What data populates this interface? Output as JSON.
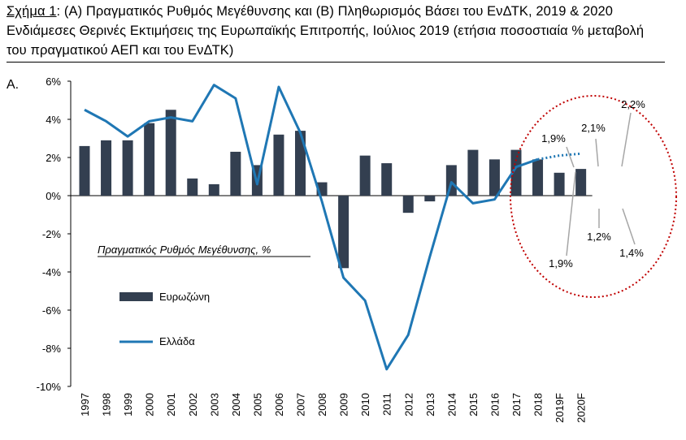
{
  "caption": {
    "label": "Σχήμα 1",
    "text": ": (Α) Πραγματικός Ρυθμός Μεγέθυνσης και (Β) Πληθωρισμός Βάσει του ΕνΔΤΚ, 2019 & 2020 Ενδιάμεσες Θερινές Εκτιμήσεις της Ευρωπαϊκής Επιτροπής, Ιούλιος 2019 (ετήσια ποσοστιαία % μεταβολή του πραγματικού ΑΕΠ και του ΕνΔΤΚ)"
  },
  "panel_label": "Α.",
  "chart_data": {
    "type": "bar",
    "categories": [
      "1997",
      "1998",
      "1999",
      "2000",
      "2001",
      "2002",
      "2003",
      "2004",
      "2005",
      "2006",
      "2007",
      "2008",
      "2009",
      "2010",
      "2011",
      "2012",
      "2013",
      "2014",
      "2015",
      "2016",
      "2017",
      "2018",
      "2019F",
      "2020F"
    ],
    "ylim": [
      -10,
      6
    ],
    "yticks": [
      6,
      4,
      2,
      0,
      -2,
      -4,
      -6,
      -8,
      -10
    ],
    "ytick_labels": [
      "6%",
      "4%",
      "2%",
      "0%",
      "-2%",
      "-4%",
      "-6%",
      "-8%",
      "-10%"
    ],
    "annotation": "Πραγματικός Ρυθμός Μεγέθυνσης, %",
    "series": [
      {
        "name": "Ευρωζώνη",
        "type": "bar",
        "color": "#333f50",
        "values": [
          2.6,
          2.9,
          2.9,
          3.8,
          4.5,
          0.9,
          0.6,
          2.3,
          1.6,
          3.2,
          3.4,
          0.7,
          -3.8,
          2.1,
          1.7,
          -0.9,
          -0.3,
          1.6,
          2.4,
          1.9,
          2.4,
          1.9,
          1.2,
          1.4
        ]
      },
      {
        "name": "Ελλάδα",
        "type": "line",
        "color": "#1f77b4",
        "forecast_style": "dotted",
        "values": [
          4.5,
          3.9,
          3.1,
          3.9,
          4.1,
          3.9,
          5.8,
          5.1,
          0.6,
          5.7,
          3.3,
          -0.3,
          -4.3,
          -5.5,
          -9.1,
          -7.3,
          -3.2,
          0.7,
          -0.4,
          -0.2,
          1.5,
          1.9,
          2.1,
          2.2
        ]
      }
    ],
    "data_labels": [
      {
        "text": "1,9%",
        "category": "2018",
        "series": "Ελλάδα",
        "value": 1.9
      },
      {
        "text": "2,1%",
        "category": "2019F",
        "series": "Ελλάδα",
        "value": 2.1
      },
      {
        "text": "2,2%",
        "category": "2020F",
        "series": "Ελλάδα",
        "value": 2.2
      },
      {
        "text": "1,9%",
        "category": "2018",
        "series": "Ευρωζώνη",
        "value": 1.9
      },
      {
        "text": "1,2%",
        "category": "2019F",
        "series": "Ευρωζώνη",
        "value": 1.2
      },
      {
        "text": "1,4%",
        "category": "2020F",
        "series": "Ευρωζώνη",
        "value": 1.4
      }
    ],
    "highlight": {
      "shape": "ellipse",
      "style": "dotted",
      "color": "#c00000",
      "covers": [
        "2018",
        "2019F",
        "2020F"
      ]
    },
    "legend_placement": "left-center",
    "grid": false
  }
}
